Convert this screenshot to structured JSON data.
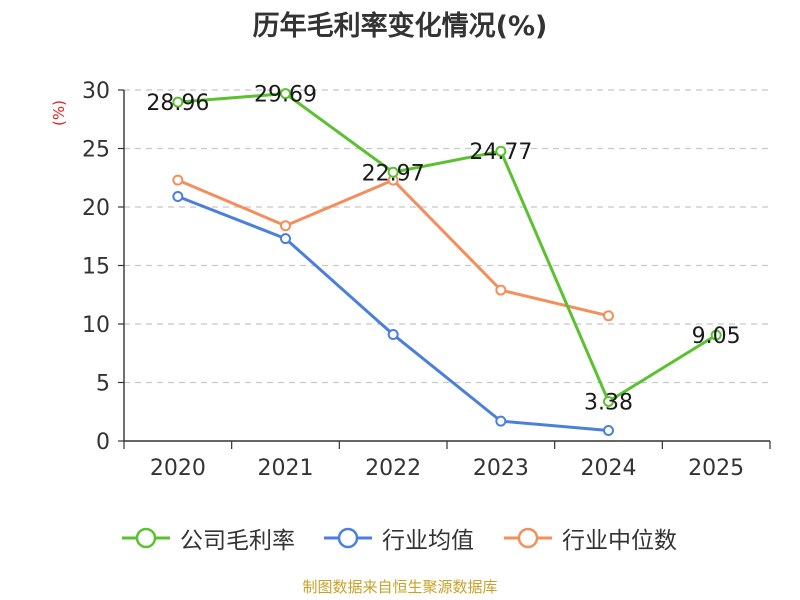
{
  "chart_data": {
    "type": "line",
    "title": "历年毛利率变化情况(%)",
    "y_unit": "(%)",
    "categories": [
      "2020",
      "2021",
      "2022",
      "2023",
      "2024",
      "2025"
    ],
    "ylim": [
      0,
      30
    ],
    "yticks": [
      0,
      5,
      10,
      15,
      20,
      25,
      30
    ],
    "grid": true,
    "legend_position": "bottom",
    "series": [
      {
        "name": "公司毛利率",
        "color": "#5ac130",
        "show_labels": true,
        "values": [
          28.96,
          29.69,
          22.97,
          24.77,
          3.38,
          9.05
        ],
        "labels": [
          "28.96",
          "29.69",
          "22.97",
          "24.77",
          "3.38",
          "9.05"
        ]
      },
      {
        "name": "行业均值",
        "color": "#4a7fdc",
        "show_labels": false,
        "values": [
          20.9,
          17.3,
          9.1,
          1.7,
          0.9,
          null
        ]
      },
      {
        "name": "行业中位数",
        "color": "#f28f5c",
        "show_labels": false,
        "values": [
          22.3,
          18.4,
          22.3,
          12.9,
          10.7,
          null
        ]
      }
    ],
    "source": "制图数据来自恒生聚源数据库"
  }
}
